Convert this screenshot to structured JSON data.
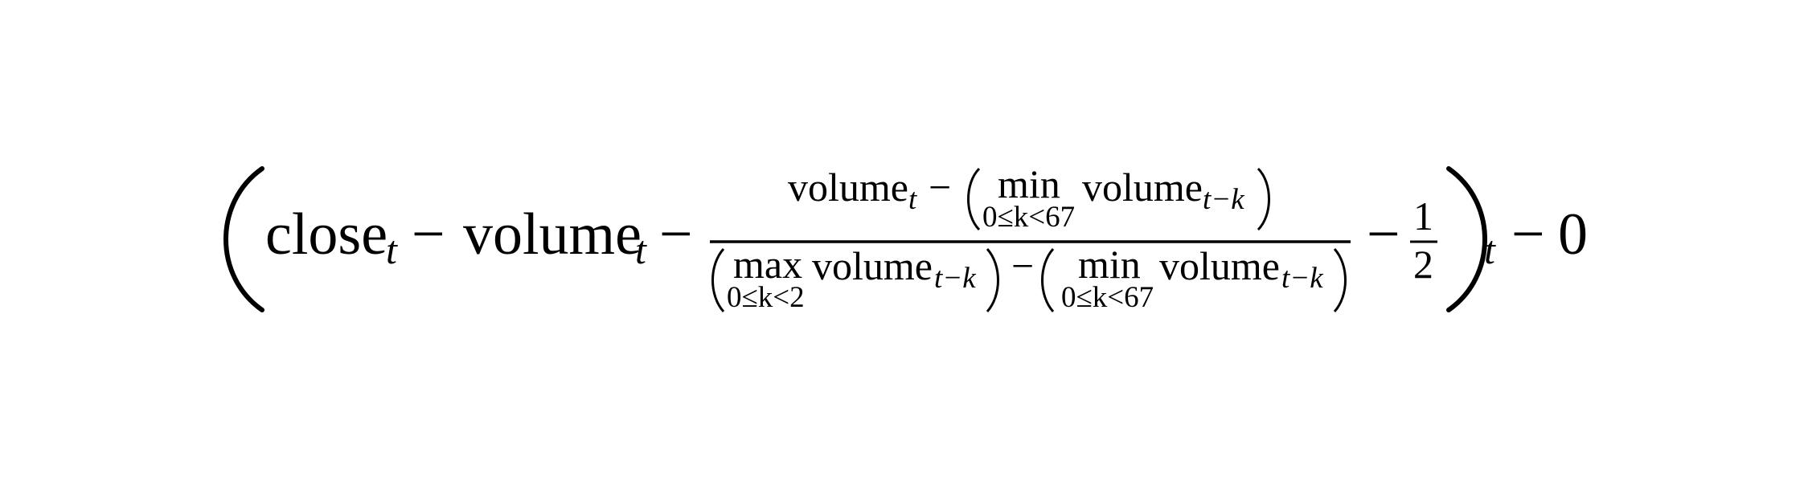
{
  "formula": {
    "outer": {
      "close": "close",
      "t": "t",
      "minus": "−",
      "volume": "volume",
      "t_outer": "t",
      "zero": "0"
    },
    "numerator": {
      "volume": "volume",
      "t": "t",
      "minus": "−",
      "min": "min",
      "limit": "0≤k<67",
      "volume_inner": "volume",
      "subscript": "t−k"
    },
    "denominator": {
      "max": "max",
      "max_limit": "0≤k<2",
      "volume1": "volume",
      "subscript1": "t−k",
      "minus": "−",
      "min": "min",
      "min_limit": "0≤k<67",
      "volume2": "volume",
      "subscript2": "t−k"
    },
    "half": {
      "minus": "−",
      "numerator": "1",
      "denominator": "2"
    }
  }
}
